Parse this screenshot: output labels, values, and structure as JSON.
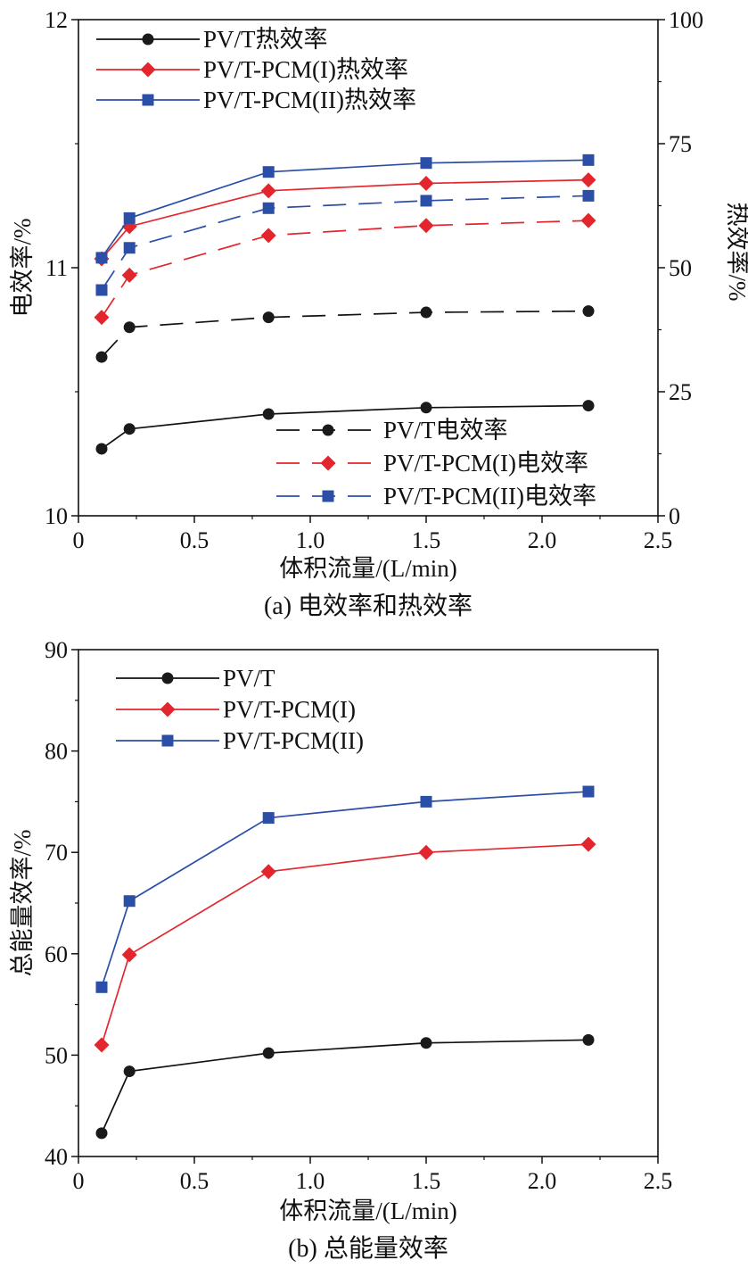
{
  "chart_data": [
    {
      "type": "line",
      "caption": "(a) 电效率和热效率",
      "xlabel": "体积流量/(L/min)",
      "ylabel": "电效率/%",
      "y2label": "热效率/%",
      "xlim": [
        0,
        2.5
      ],
      "ylim": [
        10,
        12
      ],
      "y2lim": [
        0,
        100
      ],
      "xticks": [
        "0",
        "0.5",
        "1.0",
        "1.5",
        "2.0",
        "2.5"
      ],
      "yticks": [
        "10",
        "11",
        "12"
      ],
      "y2ticks": [
        "0",
        "25",
        "50",
        "75",
        "100"
      ],
      "x": [
        0.1,
        0.22,
        0.82,
        1.5,
        2.2
      ],
      "grid": false,
      "legends": [
        "top-left",
        "bottom-right"
      ],
      "series": [
        {
          "name": "PV/T热效率",
          "axis": "right",
          "marker": "circle",
          "dash": "solid",
          "color": "#111111",
          "values": [
            13.5,
            17.5,
            20.5,
            21.8,
            22.2
          ]
        },
        {
          "name": "PV/T-PCM(I)热效率",
          "axis": "right",
          "marker": "diamond",
          "dash": "solid",
          "color": "#e3262d",
          "values": [
            51.8,
            58.3,
            65.5,
            67.0,
            67.7
          ]
        },
        {
          "name": "PV/T-PCM(II)热效率",
          "axis": "right",
          "marker": "square",
          "dash": "solid",
          "color": "#2b4ea6",
          "values": [
            52.0,
            60.0,
            69.3,
            71.1,
            71.7
          ]
        },
        {
          "name": "PV/T电效率",
          "axis": "left",
          "marker": "circle",
          "dash": "dashed",
          "color": "#111111",
          "values": [
            10.64,
            10.76,
            10.8,
            10.82,
            10.825
          ]
        },
        {
          "name": "PV/T-PCM(I)电效率",
          "axis": "left",
          "marker": "diamond",
          "dash": "dashed",
          "color": "#e3262d",
          "values": [
            10.8,
            10.97,
            11.13,
            11.17,
            11.19
          ]
        },
        {
          "name": "PV/T-PCM(II)电效率",
          "axis": "left",
          "marker": "square",
          "dash": "dashed",
          "color": "#2b4ea6",
          "values": [
            10.91,
            11.08,
            11.24,
            11.27,
            11.29
          ]
        }
      ]
    },
    {
      "type": "line",
      "caption": "(b) 总能量效率",
      "xlabel": "体积流量/(L/min)",
      "ylabel": "总能量效率/%",
      "xlim": [
        0,
        2.5
      ],
      "ylim": [
        40,
        90
      ],
      "xticks": [
        "0",
        "0.5",
        "1.0",
        "1.5",
        "2.0",
        "2.5"
      ],
      "yticks": [
        "40",
        "50",
        "60",
        "70",
        "80",
        "90"
      ],
      "x": [
        0.1,
        0.22,
        0.82,
        1.5,
        2.2
      ],
      "grid": false,
      "legends": [
        "top-left"
      ],
      "series": [
        {
          "name": "PV/T",
          "marker": "circle",
          "dash": "solid",
          "color": "#111111",
          "values": [
            42.3,
            48.4,
            50.2,
            51.2,
            51.5
          ]
        },
        {
          "name": "PV/T-PCM(I)",
          "marker": "diamond",
          "dash": "solid",
          "color": "#e3262d",
          "values": [
            51.0,
            59.9,
            68.1,
            70.0,
            70.8
          ]
        },
        {
          "name": "PV/T-PCM(II)",
          "marker": "square",
          "dash": "solid",
          "color": "#2b4ea6",
          "values": [
            56.7,
            65.2,
            73.4,
            75.0,
            76.0
          ]
        }
      ]
    }
  ]
}
